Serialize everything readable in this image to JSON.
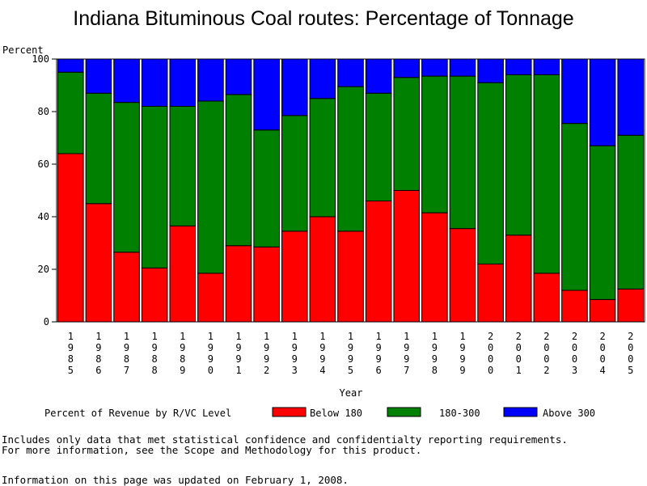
{
  "chart_data": {
    "type": "bar",
    "stacked": true,
    "title": "Indiana Bituminous Coal routes: Percentage of Tonnage",
    "ylabel": "Percent",
    "xlabel": "Year",
    "ylim": [
      0,
      100
    ],
    "yticks": [
      0,
      20,
      40,
      60,
      80,
      100
    ],
    "categories": [
      "1985",
      "1986",
      "1987",
      "1988",
      "1989",
      "1990",
      "1991",
      "1992",
      "1993",
      "1994",
      "1995",
      "1996",
      "1997",
      "1998",
      "1999",
      "2000",
      "2001",
      "2002",
      "2003",
      "2004",
      "2005"
    ],
    "series": [
      {
        "name": "Below 180",
        "color": "#ff0000",
        "values": [
          64,
          45,
          26.5,
          20.5,
          36.5,
          18.5,
          29,
          28.5,
          34.5,
          40,
          34.5,
          46,
          50,
          41.5,
          35.5,
          22,
          33,
          18.5,
          12,
          8.5,
          12.5
        ]
      },
      {
        "name": "180-300",
        "color": "#008000",
        "values": [
          31,
          42,
          57,
          61.5,
          45.5,
          65.5,
          57.5,
          44.5,
          44,
          45,
          55,
          41,
          43,
          52,
          58,
          69,
          61,
          75.5,
          63.5,
          58.5,
          58.5
        ]
      },
      {
        "name": "Above 300",
        "color": "#0000ff",
        "values": [
          5,
          13,
          16.5,
          18,
          18,
          16,
          13.5,
          27,
          21.5,
          15,
          10.5,
          13,
          7,
          6.5,
          6.5,
          9,
          6,
          6,
          24.5,
          33,
          29
        ]
      }
    ],
    "legend_title": "Percent of Revenue by R/VC Level",
    "legend_position": "bottom"
  },
  "footnotes": {
    "line1": "Includes only data that met statistical confidence and confidentialty reporting requirements.",
    "line2": "For more information, see the Scope and Methodology for this product.",
    "line3": "Information on this page was updated on February 1, 2008."
  }
}
